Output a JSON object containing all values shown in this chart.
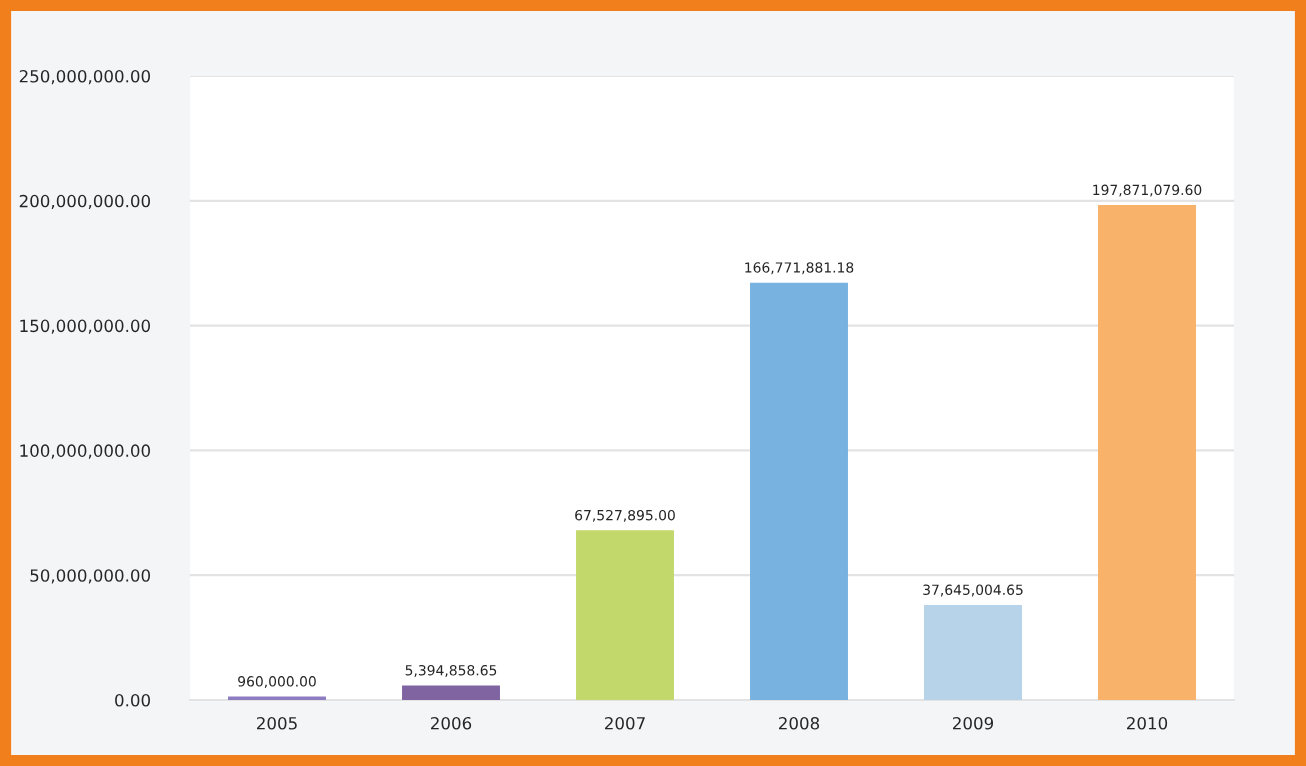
{
  "chart_data": {
    "type": "bar",
    "categories": [
      "2005",
      "2006",
      "2007",
      "2008",
      "2009",
      "2010"
    ],
    "values": [
      960000.0,
      5394858.65,
      67527895.0,
      166771881.18,
      37645004.65,
      197871079.6
    ],
    "colors": [
      "#8e7cc3",
      "#8064a2",
      "#c3d86b",
      "#77b2e0",
      "#b7d3e9",
      "#f8b26a"
    ],
    "value_labels": [
      "960,000.00",
      "5,394,858.65",
      "67,527,895.00",
      "166,771,881.18",
      "37,645,004.65",
      "197,871,079.60"
    ],
    "ylim": [
      0,
      250000000
    ],
    "yticks": [
      {
        "value": 0,
        "label": "0.00"
      },
      {
        "value": 50000000,
        "label": "50,000,000.00"
      },
      {
        "value": 100000000,
        "label": "100,000,000.00"
      },
      {
        "value": 150000000,
        "label": "150,000,000.00"
      },
      {
        "value": 200000000,
        "label": "200,000,000.00"
      },
      {
        "value": 250000000,
        "label": "250,000,000.00"
      }
    ],
    "grid": "y",
    "legend": false
  }
}
